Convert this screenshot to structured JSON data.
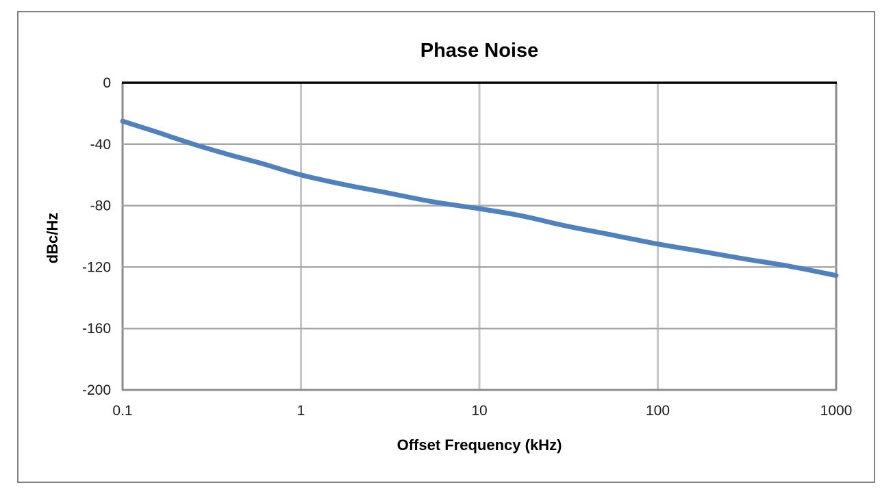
{
  "chart_data": {
    "type": "line",
    "title": "Phase Noise",
    "xlabel": "Offset Frequency (kHz)",
    "ylabel": "dBc/Hz",
    "xscale": "log",
    "xlim": [
      0.1,
      1000
    ],
    "ylim": [
      -200,
      0
    ],
    "x_ticks": [
      0.1,
      1,
      10,
      100,
      1000
    ],
    "x_tick_labels": [
      "0.1",
      "1",
      "10",
      "100",
      "1000"
    ],
    "y_ticks": [
      0,
      -40,
      -80,
      -120,
      -160,
      -200
    ],
    "y_tick_labels": [
      "0",
      "-40",
      "-80",
      "-120",
      "-160",
      "-200"
    ],
    "grid": true,
    "legend": "none",
    "series": [
      {
        "name": "Phase Noise",
        "color": "#4F81BD",
        "points": [
          [
            0.1,
            -25
          ],
          [
            0.15,
            -31.5
          ],
          [
            0.25,
            -40
          ],
          [
            0.4,
            -47
          ],
          [
            0.6,
            -52.5
          ],
          [
            1,
            -60
          ],
          [
            1.7,
            -66
          ],
          [
            3,
            -71.5
          ],
          [
            5.5,
            -77.5
          ],
          [
            10,
            -82
          ],
          [
            17,
            -86.5
          ],
          [
            30,
            -93
          ],
          [
            55,
            -99
          ],
          [
            100,
            -105
          ],
          [
            170,
            -109.5
          ],
          [
            300,
            -114.5
          ],
          [
            550,
            -119.5
          ],
          [
            1000,
            -125.5
          ]
        ]
      }
    ],
    "colors": {
      "line": "#4F81BD",
      "h_gridline": "#A6A6A6",
      "v_gridline": "#C6C6C6",
      "zero_axis": "#000000",
      "plot_border": "#8C8C8C",
      "outer_frame": "#808080",
      "tick_text": "#1a1a1a"
    }
  }
}
